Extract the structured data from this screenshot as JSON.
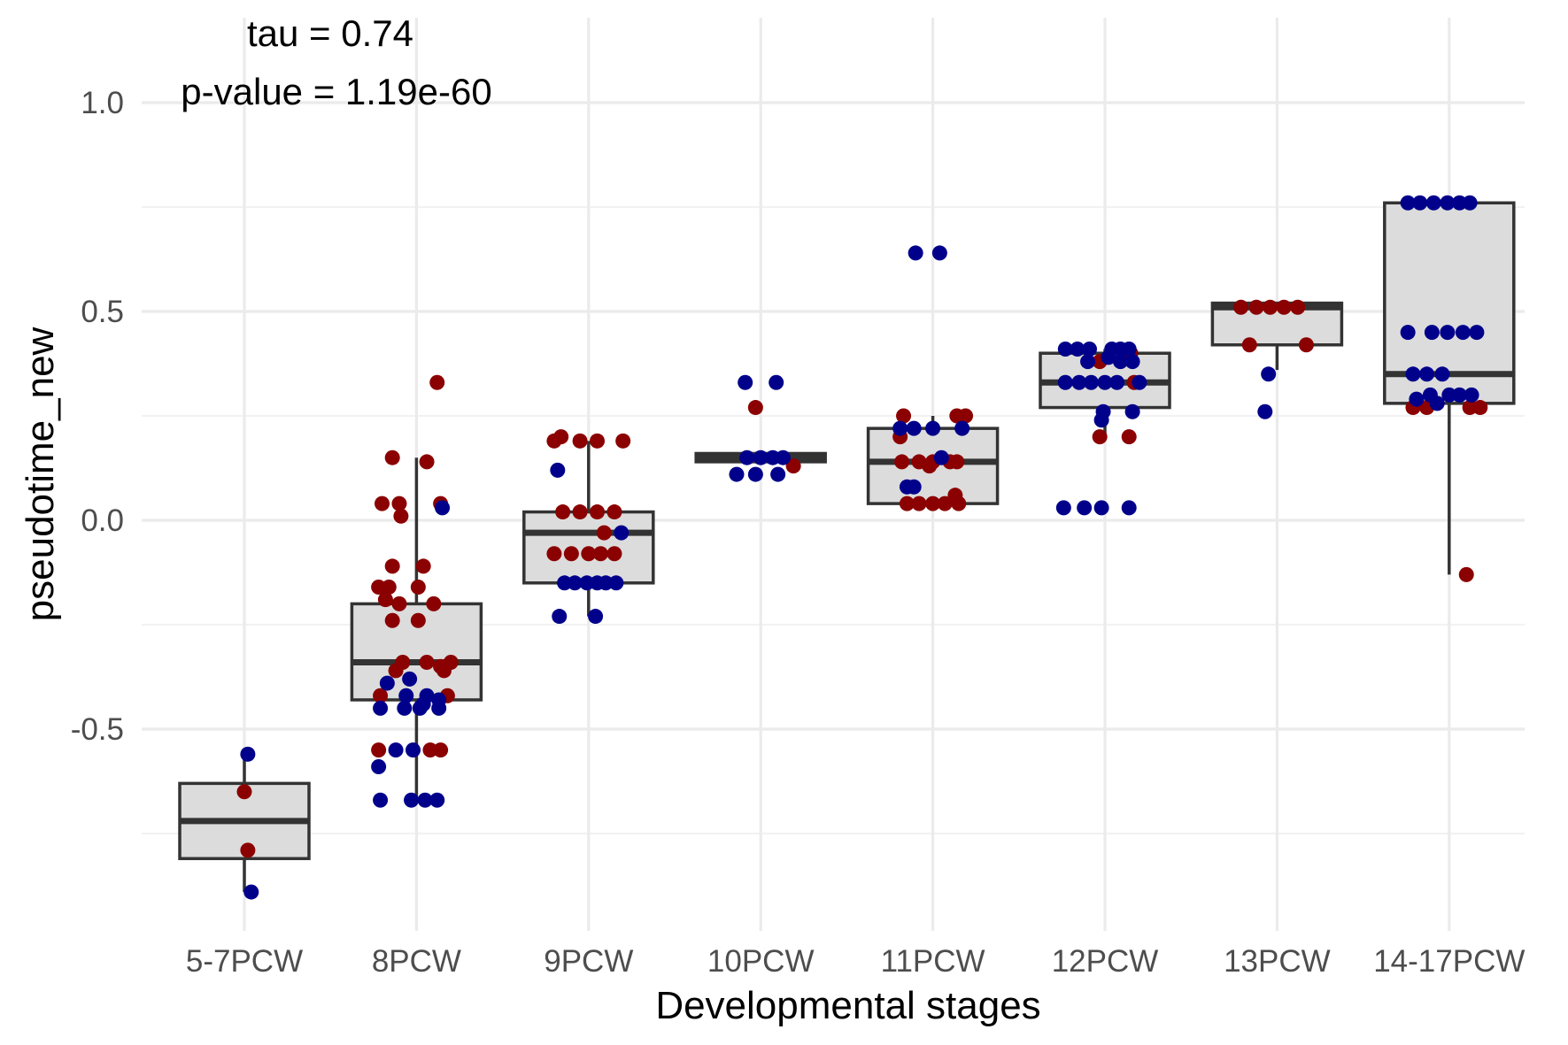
{
  "chart_data": {
    "type": "box+jitter",
    "xlabel": "Developmental stages",
    "ylabel": "pseudotime_new",
    "categories": [
      "5-7PCW",
      "8PCW",
      "9PCW",
      "10PCW",
      "11PCW",
      "12PCW",
      "13PCW",
      "14-17PCW"
    ],
    "ylim": [
      -0.98,
      1.14
    ],
    "yticks": [
      -0.5,
      0.0,
      0.5,
      1.0
    ],
    "ytick_labels": [
      "-0.5",
      "0.0",
      "0.5",
      "1.0"
    ],
    "annotations": [
      "tau = 0.74",
      "p-value = 1.19e-60"
    ],
    "grid": true,
    "colors": {
      "series_a": "#8b0000",
      "series_b": "#00008b",
      "box_fill": "#dcdcdc",
      "box_line": "#333333"
    },
    "boxes": [
      {
        "category": "5-7PCW",
        "q1": -0.81,
        "median": -0.72,
        "q3": -0.63,
        "whisker_low": -0.89,
        "whisker_high": -0.56
      },
      {
        "category": "8PCW",
        "q1": -0.43,
        "median": -0.34,
        "q3": -0.2,
        "whisker_low": -0.67,
        "whisker_high": 0.15
      },
      {
        "category": "9PCW",
        "q1": -0.15,
        "median": -0.03,
        "q3": 0.02,
        "whisker_low": -0.23,
        "whisker_high": 0.19
      },
      {
        "category": "10PCW",
        "q1": 0.14,
        "median": 0.15,
        "q3": 0.16,
        "whisker_low": 0.14,
        "whisker_high": 0.16
      },
      {
        "category": "11PCW",
        "q1": 0.04,
        "median": 0.14,
        "q3": 0.22,
        "whisker_low": 0.04,
        "whisker_high": 0.25
      },
      {
        "category": "12PCW",
        "q1": 0.27,
        "median": 0.33,
        "q3": 0.4,
        "whisker_low": 0.2,
        "whisker_high": 0.41
      },
      {
        "category": "13PCW",
        "q1": 0.42,
        "median": 0.51,
        "q3": 0.52,
        "whisker_low": 0.36,
        "whisker_high": 0.52
      },
      {
        "category": "14-17PCW",
        "q1": 0.28,
        "median": 0.35,
        "q3": 0.76,
        "whisker_low": -0.13,
        "whisker_high": 0.76
      }
    ],
    "series": [
      {
        "color_key": "series_a",
        "points": [
          {
            "x": "5-7PCW",
            "y": -0.65,
            "jitter": 0.0
          },
          {
            "x": "5-7PCW",
            "y": -0.79,
            "jitter": 0.02
          },
          {
            "x": "8PCW",
            "y": 0.33,
            "jitter": 0.12
          },
          {
            "x": "8PCW",
            "y": 0.15,
            "jitter": -0.14
          },
          {
            "x": "8PCW",
            "y": 0.14,
            "jitter": 0.06
          },
          {
            "x": "8PCW",
            "y": 0.04,
            "jitter": -0.2
          },
          {
            "x": "8PCW",
            "y": 0.04,
            "jitter": -0.1
          },
          {
            "x": "8PCW",
            "y": 0.01,
            "jitter": -0.09
          },
          {
            "x": "8PCW",
            "y": 0.04,
            "jitter": 0.14
          },
          {
            "x": "8PCW",
            "y": -0.11,
            "jitter": -0.14
          },
          {
            "x": "8PCW",
            "y": -0.11,
            "jitter": 0.04
          },
          {
            "x": "8PCW",
            "y": -0.16,
            "jitter": -0.22
          },
          {
            "x": "8PCW",
            "y": -0.16,
            "jitter": -0.16
          },
          {
            "x": "8PCW",
            "y": -0.16,
            "jitter": 0.01
          },
          {
            "x": "8PCW",
            "y": -0.19,
            "jitter": -0.18
          },
          {
            "x": "8PCW",
            "y": -0.2,
            "jitter": -0.1
          },
          {
            "x": "8PCW",
            "y": -0.2,
            "jitter": 0.1
          },
          {
            "x": "8PCW",
            "y": -0.24,
            "jitter": -0.14
          },
          {
            "x": "8PCW",
            "y": -0.24,
            "jitter": 0.01
          },
          {
            "x": "8PCW",
            "y": -0.34,
            "jitter": -0.08
          },
          {
            "x": "8PCW",
            "y": -0.34,
            "jitter": 0.06
          },
          {
            "x": "8PCW",
            "y": -0.34,
            "jitter": 0.2
          },
          {
            "x": "8PCW",
            "y": -0.35,
            "jitter": 0.14
          },
          {
            "x": "8PCW",
            "y": -0.36,
            "jitter": -0.12
          },
          {
            "x": "8PCW",
            "y": -0.36,
            "jitter": 0.16
          },
          {
            "x": "8PCW",
            "y": -0.42,
            "jitter": -0.21
          },
          {
            "x": "8PCW",
            "y": -0.42,
            "jitter": 0.18
          },
          {
            "x": "8PCW",
            "y": -0.55,
            "jitter": -0.22
          },
          {
            "x": "8PCW",
            "y": -0.55,
            "jitter": 0.08
          },
          {
            "x": "8PCW",
            "y": -0.55,
            "jitter": 0.14
          },
          {
            "x": "9PCW",
            "y": 0.2,
            "jitter": -0.16
          },
          {
            "x": "9PCW",
            "y": 0.19,
            "jitter": -0.2
          },
          {
            "x": "9PCW",
            "y": 0.19,
            "jitter": -0.05
          },
          {
            "x": "9PCW",
            "y": 0.19,
            "jitter": 0.05
          },
          {
            "x": "9PCW",
            "y": 0.19,
            "jitter": 0.2
          },
          {
            "x": "9PCW",
            "y": 0.02,
            "jitter": -0.15
          },
          {
            "x": "9PCW",
            "y": 0.02,
            "jitter": -0.05
          },
          {
            "x": "9PCW",
            "y": 0.02,
            "jitter": 0.05
          },
          {
            "x": "9PCW",
            "y": 0.02,
            "jitter": 0.15
          },
          {
            "x": "9PCW",
            "y": -0.03,
            "jitter": 0.09
          },
          {
            "x": "9PCW",
            "y": -0.08,
            "jitter": -0.2
          },
          {
            "x": "9PCW",
            "y": -0.08,
            "jitter": -0.1
          },
          {
            "x": "9PCW",
            "y": -0.08,
            "jitter": 0.0
          },
          {
            "x": "9PCW",
            "y": -0.08,
            "jitter": 0.07
          },
          {
            "x": "9PCW",
            "y": -0.08,
            "jitter": 0.15
          },
          {
            "x": "10PCW",
            "y": 0.27,
            "jitter": -0.03
          },
          {
            "x": "10PCW",
            "y": 0.13,
            "jitter": 0.19
          },
          {
            "x": "11PCW",
            "y": 0.25,
            "jitter": -0.17
          },
          {
            "x": "11PCW",
            "y": 0.25,
            "jitter": 0.14
          },
          {
            "x": "11PCW",
            "y": 0.25,
            "jitter": 0.19
          },
          {
            "x": "11PCW",
            "y": 0.2,
            "jitter": -0.19
          },
          {
            "x": "11PCW",
            "y": 0.14,
            "jitter": -0.18
          },
          {
            "x": "11PCW",
            "y": 0.14,
            "jitter": -0.08
          },
          {
            "x": "11PCW",
            "y": 0.14,
            "jitter": 0.0
          },
          {
            "x": "11PCW",
            "y": 0.14,
            "jitter": 0.1
          },
          {
            "x": "11PCW",
            "y": 0.14,
            "jitter": 0.14
          },
          {
            "x": "11PCW",
            "y": 0.13,
            "jitter": -0.02
          },
          {
            "x": "11PCW",
            "y": 0.06,
            "jitter": 0.13
          },
          {
            "x": "11PCW",
            "y": 0.04,
            "jitter": -0.15
          },
          {
            "x": "11PCW",
            "y": 0.04,
            "jitter": -0.08
          },
          {
            "x": "11PCW",
            "y": 0.04,
            "jitter": 0.0
          },
          {
            "x": "11PCW",
            "y": 0.04,
            "jitter": 0.07
          },
          {
            "x": "11PCW",
            "y": 0.04,
            "jitter": 0.15
          },
          {
            "x": "12PCW",
            "y": 0.4,
            "jitter": 0.15
          },
          {
            "x": "12PCW",
            "y": 0.38,
            "jitter": -0.03
          },
          {
            "x": "12PCW",
            "y": 0.33,
            "jitter": 0.17
          },
          {
            "x": "12PCW",
            "y": 0.2,
            "jitter": -0.03
          },
          {
            "x": "12PCW",
            "y": 0.2,
            "jitter": 0.14
          },
          {
            "x": "13PCW",
            "y": 0.51,
            "jitter": -0.21
          },
          {
            "x": "13PCW",
            "y": 0.51,
            "jitter": -0.12
          },
          {
            "x": "13PCW",
            "y": 0.51,
            "jitter": -0.04
          },
          {
            "x": "13PCW",
            "y": 0.51,
            "jitter": 0.04
          },
          {
            "x": "13PCW",
            "y": 0.51,
            "jitter": 0.12
          },
          {
            "x": "13PCW",
            "y": 0.42,
            "jitter": -0.16
          },
          {
            "x": "13PCW",
            "y": 0.42,
            "jitter": 0.17
          },
          {
            "x": "14-17PCW",
            "y": 0.27,
            "jitter": -0.21
          },
          {
            "x": "14-17PCW",
            "y": 0.27,
            "jitter": -0.13
          },
          {
            "x": "14-17PCW",
            "y": 0.27,
            "jitter": 0.12
          },
          {
            "x": "14-17PCW",
            "y": 0.27,
            "jitter": 0.18
          },
          {
            "x": "14-17PCW",
            "y": -0.13,
            "jitter": 0.1
          }
        ]
      },
      {
        "color_key": "series_b",
        "points": [
          {
            "x": "5-7PCW",
            "y": -0.56,
            "jitter": 0.02
          },
          {
            "x": "5-7PCW",
            "y": -0.89,
            "jitter": 0.04
          },
          {
            "x": "8PCW",
            "y": 0.03,
            "jitter": 0.15
          },
          {
            "x": "8PCW",
            "y": -0.39,
            "jitter": -0.17
          },
          {
            "x": "8PCW",
            "y": -0.38,
            "jitter": -0.04
          },
          {
            "x": "8PCW",
            "y": -0.42,
            "jitter": -0.06
          },
          {
            "x": "8PCW",
            "y": -0.42,
            "jitter": 0.06
          },
          {
            "x": "8PCW",
            "y": -0.43,
            "jitter": 0.13
          },
          {
            "x": "8PCW",
            "y": -0.44,
            "jitter": 0.04
          },
          {
            "x": "8PCW",
            "y": -0.45,
            "jitter": -0.21
          },
          {
            "x": "8PCW",
            "y": -0.45,
            "jitter": -0.07
          },
          {
            "x": "8PCW",
            "y": -0.45,
            "jitter": 0.02
          },
          {
            "x": "8PCW",
            "y": -0.45,
            "jitter": 0.13
          },
          {
            "x": "8PCW",
            "y": -0.55,
            "jitter": -0.12
          },
          {
            "x": "8PCW",
            "y": -0.55,
            "jitter": -0.02
          },
          {
            "x": "8PCW",
            "y": -0.59,
            "jitter": -0.22
          },
          {
            "x": "8PCW",
            "y": -0.67,
            "jitter": -0.21
          },
          {
            "x": "8PCW",
            "y": -0.67,
            "jitter": -0.03
          },
          {
            "x": "8PCW",
            "y": -0.67,
            "jitter": 0.05
          },
          {
            "x": "8PCW",
            "y": -0.67,
            "jitter": 0.12
          },
          {
            "x": "9PCW",
            "y": 0.12,
            "jitter": -0.18
          },
          {
            "x": "9PCW",
            "y": -0.03,
            "jitter": 0.19
          },
          {
            "x": "9PCW",
            "y": -0.15,
            "jitter": -0.14
          },
          {
            "x": "9PCW",
            "y": -0.15,
            "jitter": -0.08
          },
          {
            "x": "9PCW",
            "y": -0.15,
            "jitter": -0.01
          },
          {
            "x": "9PCW",
            "y": -0.15,
            "jitter": 0.05
          },
          {
            "x": "9PCW",
            "y": -0.15,
            "jitter": 0.1
          },
          {
            "x": "9PCW",
            "y": -0.15,
            "jitter": 0.16
          },
          {
            "x": "9PCW",
            "y": -0.23,
            "jitter": -0.17
          },
          {
            "x": "9PCW",
            "y": -0.23,
            "jitter": 0.04
          },
          {
            "x": "10PCW",
            "y": 0.33,
            "jitter": -0.09
          },
          {
            "x": "10PCW",
            "y": 0.33,
            "jitter": 0.09
          },
          {
            "x": "10PCW",
            "y": 0.15,
            "jitter": -0.08
          },
          {
            "x": "10PCW",
            "y": 0.15,
            "jitter": 0.0
          },
          {
            "x": "10PCW",
            "y": 0.15,
            "jitter": 0.07
          },
          {
            "x": "10PCW",
            "y": 0.15,
            "jitter": 0.13
          },
          {
            "x": "10PCW",
            "y": 0.11,
            "jitter": -0.14
          },
          {
            "x": "10PCW",
            "y": 0.11,
            "jitter": -0.03
          },
          {
            "x": "10PCW",
            "y": 0.11,
            "jitter": 0.1
          },
          {
            "x": "11PCW",
            "y": 0.64,
            "jitter": -0.1
          },
          {
            "x": "11PCW",
            "y": 0.64,
            "jitter": 0.04
          },
          {
            "x": "11PCW",
            "y": 0.22,
            "jitter": -0.19
          },
          {
            "x": "11PCW",
            "y": 0.22,
            "jitter": -0.11
          },
          {
            "x": "11PCW",
            "y": 0.22,
            "jitter": 0.0
          },
          {
            "x": "11PCW",
            "y": 0.22,
            "jitter": 0.17
          },
          {
            "x": "11PCW",
            "y": 0.15,
            "jitter": 0.05
          },
          {
            "x": "11PCW",
            "y": 0.08,
            "jitter": -0.15
          },
          {
            "x": "11PCW",
            "y": 0.08,
            "jitter": -0.11
          },
          {
            "x": "12PCW",
            "y": 0.41,
            "jitter": -0.23
          },
          {
            "x": "12PCW",
            "y": 0.41,
            "jitter": -0.16
          },
          {
            "x": "12PCW",
            "y": 0.41,
            "jitter": -0.09
          },
          {
            "x": "12PCW",
            "y": 0.41,
            "jitter": 0.04
          },
          {
            "x": "12PCW",
            "y": 0.41,
            "jitter": 0.09
          },
          {
            "x": "12PCW",
            "y": 0.41,
            "jitter": 0.14
          },
          {
            "x": "12PCW",
            "y": 0.39,
            "jitter": 0.02
          },
          {
            "x": "12PCW",
            "y": 0.38,
            "jitter": -0.1
          },
          {
            "x": "12PCW",
            "y": 0.38,
            "jitter": 0.09
          },
          {
            "x": "12PCW",
            "y": 0.38,
            "jitter": 0.16
          },
          {
            "x": "12PCW",
            "y": 0.33,
            "jitter": -0.23
          },
          {
            "x": "12PCW",
            "y": 0.33,
            "jitter": -0.15
          },
          {
            "x": "12PCW",
            "y": 0.33,
            "jitter": -0.08
          },
          {
            "x": "12PCW",
            "y": 0.33,
            "jitter": 0.0
          },
          {
            "x": "12PCW",
            "y": 0.33,
            "jitter": 0.07
          },
          {
            "x": "12PCW",
            "y": 0.33,
            "jitter": 0.2
          },
          {
            "x": "12PCW",
            "y": 0.26,
            "jitter": -0.01
          },
          {
            "x": "12PCW",
            "y": 0.26,
            "jitter": 0.16
          },
          {
            "x": "12PCW",
            "y": 0.24,
            "jitter": -0.02
          },
          {
            "x": "12PCW",
            "y": 0.03,
            "jitter": -0.24
          },
          {
            "x": "12PCW",
            "y": 0.03,
            "jitter": -0.12
          },
          {
            "x": "12PCW",
            "y": 0.03,
            "jitter": -0.02
          },
          {
            "x": "12PCW",
            "y": 0.03,
            "jitter": 0.14
          },
          {
            "x": "13PCW",
            "y": 0.35,
            "jitter": -0.05
          },
          {
            "x": "13PCW",
            "y": 0.26,
            "jitter": -0.07
          },
          {
            "x": "14-17PCW",
            "y": 0.76,
            "jitter": -0.24
          },
          {
            "x": "14-17PCW",
            "y": 0.76,
            "jitter": -0.17
          },
          {
            "x": "14-17PCW",
            "y": 0.76,
            "jitter": -0.09
          },
          {
            "x": "14-17PCW",
            "y": 0.76,
            "jitter": -0.01
          },
          {
            "x": "14-17PCW",
            "y": 0.76,
            "jitter": 0.06
          },
          {
            "x": "14-17PCW",
            "y": 0.76,
            "jitter": 0.12
          },
          {
            "x": "14-17PCW",
            "y": 0.45,
            "jitter": -0.24
          },
          {
            "x": "14-17PCW",
            "y": 0.45,
            "jitter": -0.1
          },
          {
            "x": "14-17PCW",
            "y": 0.45,
            "jitter": -0.01
          },
          {
            "x": "14-17PCW",
            "y": 0.45,
            "jitter": 0.08
          },
          {
            "x": "14-17PCW",
            "y": 0.45,
            "jitter": 0.16
          },
          {
            "x": "14-17PCW",
            "y": 0.35,
            "jitter": -0.21
          },
          {
            "x": "14-17PCW",
            "y": 0.35,
            "jitter": -0.13
          },
          {
            "x": "14-17PCW",
            "y": 0.35,
            "jitter": -0.04
          },
          {
            "x": "14-17PCW",
            "y": 0.3,
            "jitter": -0.11
          },
          {
            "x": "14-17PCW",
            "y": 0.3,
            "jitter": 0.0
          },
          {
            "x": "14-17PCW",
            "y": 0.3,
            "jitter": 0.06
          },
          {
            "x": "14-17PCW",
            "y": 0.3,
            "jitter": 0.13
          },
          {
            "x": "14-17PCW",
            "y": 0.28,
            "jitter": -0.07
          },
          {
            "x": "14-17PCW",
            "y": 0.29,
            "jitter": -0.19
          }
        ]
      }
    ]
  }
}
